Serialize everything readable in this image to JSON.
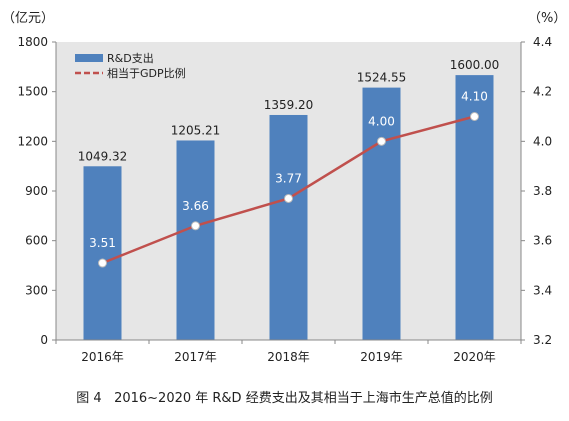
{
  "chart_data": {
    "type": "bar",
    "categories": [
      "2016年",
      "2017年",
      "2018年",
      "2019年",
      "2020年"
    ],
    "series": [
      {
        "name": "R&D支出",
        "type": "bar",
        "axis": "left",
        "values": [
          1049.32,
          1205.21,
          1359.2,
          1524.55,
          1600.0
        ],
        "labels": [
          "1049.32",
          "1205.21",
          "1359.20",
          "1524.55",
          "1600.00"
        ],
        "color": "#4f81bd"
      },
      {
        "name": "相当于GDP比例",
        "type": "line",
        "axis": "right",
        "values": [
          3.51,
          3.66,
          3.77,
          4.0,
          4.1
        ],
        "labels": [
          "3.51",
          "3.66",
          "3.77",
          "4.00",
          "4.10"
        ],
        "color": "#c0504d"
      }
    ],
    "y_left": {
      "unit": "（亿元）",
      "ylim": [
        0,
        1800
      ],
      "ticks": [
        "0",
        "300",
        "600",
        "900",
        "1200",
        "1500",
        "1800"
      ]
    },
    "y_right": {
      "unit": "（%）",
      "ylim": [
        3.2,
        4.4
      ],
      "ticks": [
        "3.2",
        "3.4",
        "3.6",
        "3.8",
        "4.0",
        "4.2",
        "4.4"
      ]
    },
    "legend_position": "top-left",
    "grid": false,
    "plot_background": "#e6e6e6"
  },
  "caption": "图 4   2016~2020 年 R&D 经费支出及其相当于上海市生产总值的比例"
}
